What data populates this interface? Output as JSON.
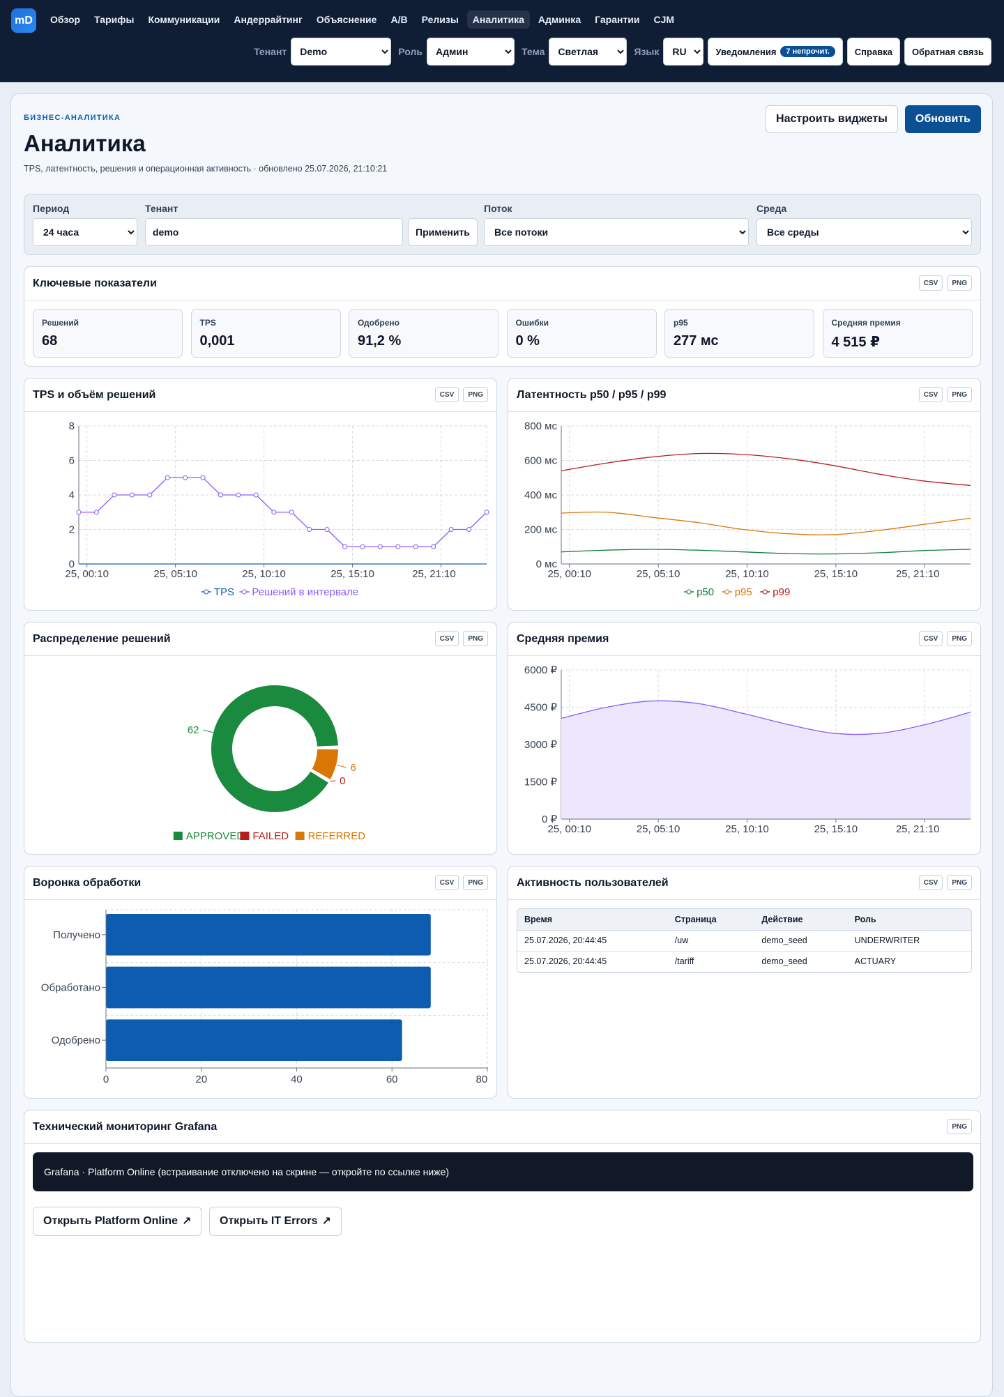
{
  "app": {
    "logo": "mD"
  },
  "nav": {
    "items": [
      "Обзор",
      "Тарифы",
      "Коммуникации",
      "Андеррайтинг",
      "Объяснение",
      "A/B",
      "Релизы",
      "Аналитика",
      "Админка",
      "Гарантии",
      "CJM"
    ],
    "active": "Аналитика"
  },
  "topctrls": {
    "tenant": {
      "label": "Тенант",
      "value": "Demo"
    },
    "role": {
      "label": "Роль",
      "value": "Админ"
    },
    "theme": {
      "label": "Тема",
      "value": "Светлая"
    },
    "lang": {
      "label": "Язык",
      "value": "RU"
    },
    "notifications": {
      "label": "Уведомления",
      "badge": "7 непрочит."
    },
    "help": "Справка",
    "feedback": "Обратная связь"
  },
  "header": {
    "eyebrow": "БИЗНЕС-АНАЛИТИКА",
    "title": "Аналитика",
    "subtitle": "TPS, латентность, решения и операционная активность · обновлено 25.07.2026, 21:10:21",
    "configure": "Настроить виджеты",
    "refresh": "Обновить"
  },
  "filters": {
    "period": {
      "label": "Период",
      "value": "24 часа"
    },
    "tenant": {
      "label": "Тенант",
      "value": "demo"
    },
    "apply": "Применить",
    "flow": {
      "label": "Поток",
      "value": "Все потоки"
    },
    "env": {
      "label": "Среда",
      "value": "Все среды"
    }
  },
  "buttons": {
    "csv": "CSV",
    "png": "PNG"
  },
  "kpis": {
    "title": "Ключевые показатели",
    "items": [
      {
        "label": "Решений",
        "value": "68"
      },
      {
        "label": "TPS",
        "value": "0,001"
      },
      {
        "label": "Одобрено",
        "value": "91,2 %"
      },
      {
        "label": "Ошибки",
        "value": "0 %"
      },
      {
        "label": "p95",
        "value": "277 мс"
      },
      {
        "label": "Средняя премия",
        "value": "4 515 ₽"
      }
    ]
  },
  "cards": {
    "tps": "TPS и объём решений",
    "latency": "Латентность p50 / p95 / p99",
    "distribution": "Распределение решений",
    "premium": "Средняя премия",
    "funnel": "Воронка обработки",
    "activity": "Активность пользователей",
    "grafana": "Технический мониторинг Grafana"
  },
  "chart_data": [
    {
      "type": "line",
      "ylim": [
        0,
        8
      ],
      "yticks": [
        0,
        2,
        4,
        6,
        8
      ],
      "xticks": [
        "25, 00:10",
        "25, 05:10",
        "25, 10:10",
        "25, 15:10",
        "25, 21:10"
      ],
      "series": [
        {
          "name": "TPS",
          "color": "#1d5fb8",
          "values": [
            0.001,
            0.001,
            0.001,
            0.001,
            0.001,
            0.001,
            0.001,
            0.001,
            0.001,
            0.001,
            0.001,
            0.001,
            0.001,
            0.001,
            0.001,
            0.001,
            0.001,
            0.001,
            0.001,
            0.001,
            0.001,
            0.001,
            0.001,
            0.001
          ]
        },
        {
          "name": "Решений в интервале",
          "color": "#8b5cf6",
          "values": [
            3,
            3,
            4,
            4,
            4,
            5,
            5,
            5,
            4,
            4,
            4,
            3,
            3,
            2,
            2,
            1,
            1,
            1,
            1,
            1,
            1,
            2,
            2,
            3
          ]
        }
      ]
    },
    {
      "type": "line",
      "ylim": [
        0,
        800
      ],
      "yticks": [
        "0 мс",
        "200 мс",
        "400 мс",
        "600 мс",
        "800 мс"
      ],
      "xticks": [
        "25, 00:10",
        "25, 05:10",
        "25, 10:10",
        "25, 15:10",
        "25, 21:10"
      ],
      "series": [
        {
          "name": "p50",
          "color": "#16803c",
          "values": [
            70,
            80,
            85,
            80,
            70,
            60,
            58,
            65,
            78,
            85
          ]
        },
        {
          "name": "p95",
          "color": "#d97706",
          "values": [
            295,
            300,
            270,
            240,
            200,
            175,
            170,
            195,
            230,
            265
          ]
        },
        {
          "name": "p99",
          "color": "#b91c1c",
          "values": [
            540,
            585,
            620,
            640,
            635,
            610,
            570,
            520,
            480,
            455
          ]
        }
      ]
    },
    {
      "type": "pie",
      "categories": [
        "APPROVED",
        "FAILED",
        "REFERRED"
      ],
      "values": [
        62,
        0,
        6
      ],
      "colors": [
        "#1a8a3e",
        "#b91c1c",
        "#d97706"
      ]
    },
    {
      "type": "area",
      "ylim": [
        0,
        6000
      ],
      "yticks": [
        "0 ₽",
        "1500 ₽",
        "3000 ₽",
        "4500 ₽",
        "6000 ₽"
      ],
      "xticks": [
        "25, 00:10",
        "25, 05:10",
        "25, 10:10",
        "25, 15:10",
        "25, 21:10"
      ],
      "series": [
        {
          "name": "Средняя премия",
          "values": [
            4050,
            4500,
            4750,
            4650,
            4250,
            3800,
            3450,
            3450,
            3800,
            4300
          ]
        }
      ]
    },
    {
      "type": "bar",
      "categories": [
        "Получено",
        "Обработано",
        "Одобрено"
      ],
      "values": [
        68,
        68,
        62
      ],
      "xlim": [
        0,
        80
      ],
      "xticks": [
        0,
        20,
        40,
        60,
        80
      ]
    }
  ],
  "activity": {
    "columns": [
      "Время",
      "Страница",
      "Действие",
      "Роль"
    ],
    "rows": [
      [
        "25.07.2026, 20:44:45",
        "/uw",
        "demo_seed",
        "UNDERWRITER"
      ],
      [
        "25.07.2026, 20:44:45",
        "/tariff",
        "demo_seed",
        "ACTUARY"
      ]
    ]
  },
  "grafana": {
    "banner": "Grafana · Platform Online (встраивание отключено на скрине — откройте по ссылке ниже)",
    "link1": "Открыть Platform Online",
    "link2": "Открыть IT Errors"
  }
}
